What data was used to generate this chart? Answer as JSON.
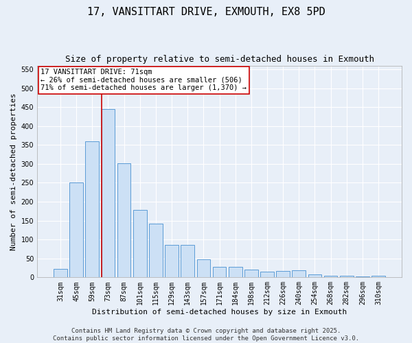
{
  "title": "17, VANSITTART DRIVE, EXMOUTH, EX8 5PD",
  "subtitle": "Size of property relative to semi-detached houses in Exmouth",
  "xlabel": "Distribution of semi-detached houses by size in Exmouth",
  "ylabel": "Number of semi-detached properties",
  "categories": [
    "31sqm",
    "45sqm",
    "59sqm",
    "73sqm",
    "87sqm",
    "101sqm",
    "115sqm",
    "129sqm",
    "143sqm",
    "157sqm",
    "171sqm",
    "184sqm",
    "198sqm",
    "212sqm",
    "226sqm",
    "240sqm",
    "254sqm",
    "268sqm",
    "282sqm",
    "296sqm",
    "310sqm"
  ],
  "values": [
    22,
    250,
    360,
    445,
    302,
    178,
    142,
    85,
    85,
    47,
    27,
    27,
    20,
    15,
    17,
    18,
    8,
    5,
    5,
    3,
    5
  ],
  "bar_color": "#cce0f5",
  "bar_edge_color": "#5b9bd5",
  "red_line_index": 3,
  "red_line_color": "#cc0000",
  "annotation_text": "17 VANSITTART DRIVE: 71sqm\n← 26% of semi-detached houses are smaller (506)\n71% of semi-detached houses are larger (1,370) →",
  "annotation_box_color": "#ffffff",
  "annotation_box_edge": "#cc0000",
  "ylim": [
    0,
    560
  ],
  "yticks": [
    0,
    50,
    100,
    150,
    200,
    250,
    300,
    350,
    400,
    450,
    500,
    550
  ],
  "background_color": "#e8eff8",
  "grid_color": "#ffffff",
  "footer_text": "Contains HM Land Registry data © Crown copyright and database right 2025.\nContains public sector information licensed under the Open Government Licence v3.0.",
  "title_fontsize": 11,
  "subtitle_fontsize": 9,
  "xlabel_fontsize": 8,
  "ylabel_fontsize": 8,
  "tick_fontsize": 7,
  "annotation_fontsize": 7.5,
  "footer_fontsize": 6.5
}
